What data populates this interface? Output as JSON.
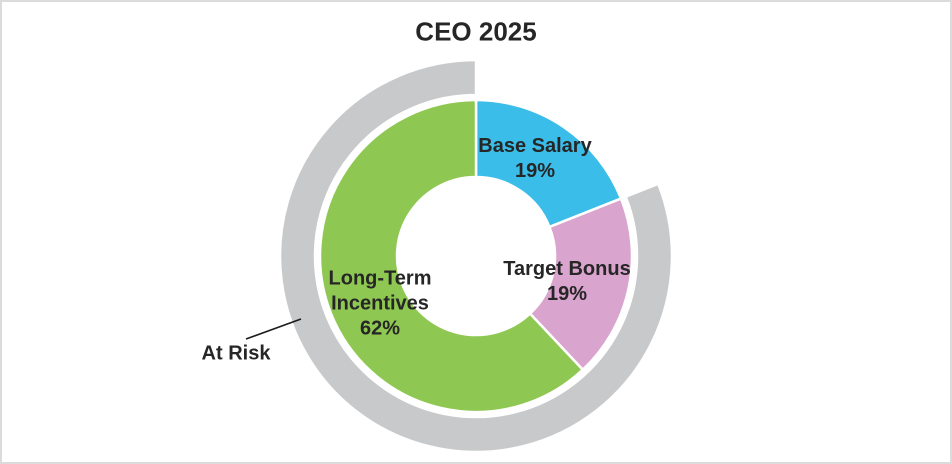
{
  "colors": {
    "text": "#262626",
    "slice_border": "#FFFFFF",
    "canvas_background": "#FFFFFF",
    "canvas_border": "#DBDBDB",
    "leader_line": "#1C1C1C"
  },
  "chart_data": {
    "type": "pie",
    "subtype": "donut_with_outer_ring",
    "title": "CEO 2025",
    "total": 100,
    "legend": "none",
    "data_labels": "inside, name + percent",
    "slices": [
      {
        "name": "Base Salary",
        "label_lines": [
          "Base Salary"
        ],
        "pct_label": "19%",
        "value": 19,
        "color": "#3BBDE9"
      },
      {
        "name": "Target Bonus",
        "label_lines": [
          "Target Bonus"
        ],
        "pct_label": "19%",
        "value": 19,
        "color": "#D9A4CD"
      },
      {
        "name": "Long-Term Incentives",
        "label_lines": [
          "Long-Term",
          "Incentives"
        ],
        "pct_label": "62%",
        "value": 62,
        "color": "#8EC751"
      }
    ],
    "outer_ring": {
      "name": "At Risk",
      "annotation": "At Risk",
      "value": 81,
      "skip_value": 19,
      "covers": [
        "Target Bonus",
        "Long-Term Incentives"
      ],
      "color": "#C8C9CA"
    }
  }
}
